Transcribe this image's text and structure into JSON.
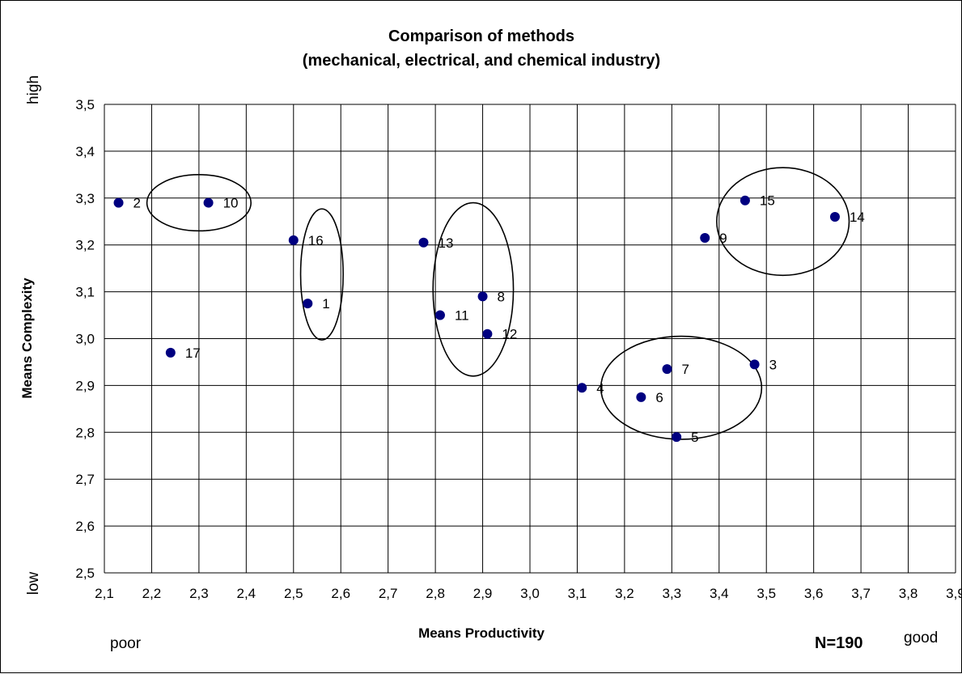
{
  "chart_data": {
    "type": "scatter",
    "title_line1": "Comparison of methods",
    "title_line2": "(mechanical, electrical, and chemical industry)",
    "xlabel": "Means Productivity",
    "ylabel": "Means Complexity",
    "xlim": [
      2.1,
      3.9
    ],
    "ylim": [
      2.5,
      3.5
    ],
    "grid": true,
    "marker_color": "#000080",
    "x_ticks": [
      "2,1",
      "2,2",
      "2,3",
      "2,4",
      "2,5",
      "2,6",
      "2,7",
      "2,8",
      "2,9",
      "3,0",
      "3,1",
      "3,2",
      "3,3",
      "3,4",
      "3,5",
      "3,6",
      "3,7",
      "3,8",
      "3,9"
    ],
    "y_ticks": [
      "2,5",
      "2,6",
      "2,7",
      "2,8",
      "2,9",
      "3,0",
      "3,1",
      "3,2",
      "3,3",
      "3,4",
      "3,5"
    ],
    "points": [
      {
        "label": "1",
        "x": 2.53,
        "y": 3.075
      },
      {
        "label": "2",
        "x": 2.13,
        "y": 3.29
      },
      {
        "label": "3",
        "x": 3.475,
        "y": 2.945
      },
      {
        "label": "4",
        "x": 3.11,
        "y": 2.895
      },
      {
        "label": "5",
        "x": 3.31,
        "y": 2.79
      },
      {
        "label": "6",
        "x": 3.235,
        "y": 2.875
      },
      {
        "label": "7",
        "x": 3.29,
        "y": 2.935
      },
      {
        "label": "8",
        "x": 2.9,
        "y": 3.09
      },
      {
        "label": "9",
        "x": 3.37,
        "y": 3.215
      },
      {
        "label": "10",
        "x": 2.32,
        "y": 3.29
      },
      {
        "label": "11",
        "x": 2.81,
        "y": 3.05
      },
      {
        "label": "12",
        "x": 2.91,
        "y": 3.01
      },
      {
        "label": "13",
        "x": 2.775,
        "y": 3.205
      },
      {
        "label": "14",
        "x": 3.645,
        "y": 3.26
      },
      {
        "label": "15",
        "x": 3.455,
        "y": 3.295
      },
      {
        "label": "16",
        "x": 2.5,
        "y": 3.21
      },
      {
        "label": "17",
        "x": 2.24,
        "y": 2.97
      }
    ],
    "clusters": [
      {
        "cx": 2.3,
        "cy": 3.29,
        "rx": 0.11,
        "ry": 0.06
      },
      {
        "cx": 2.56,
        "cy": 3.137,
        "rx": 0.045,
        "ry": 0.14
      },
      {
        "cx": 2.88,
        "cy": 3.105,
        "rx": 0.085,
        "ry": 0.185
      },
      {
        "cx": 3.32,
        "cy": 2.895,
        "rx": 0.17,
        "ry": 0.11
      },
      {
        "cx": 3.535,
        "cy": 3.25,
        "rx": 0.14,
        "ry": 0.115
      }
    ]
  },
  "y_high": "high",
  "y_low": "low",
  "x_poor": "poor",
  "x_good": "good",
  "n_label": "N=190"
}
